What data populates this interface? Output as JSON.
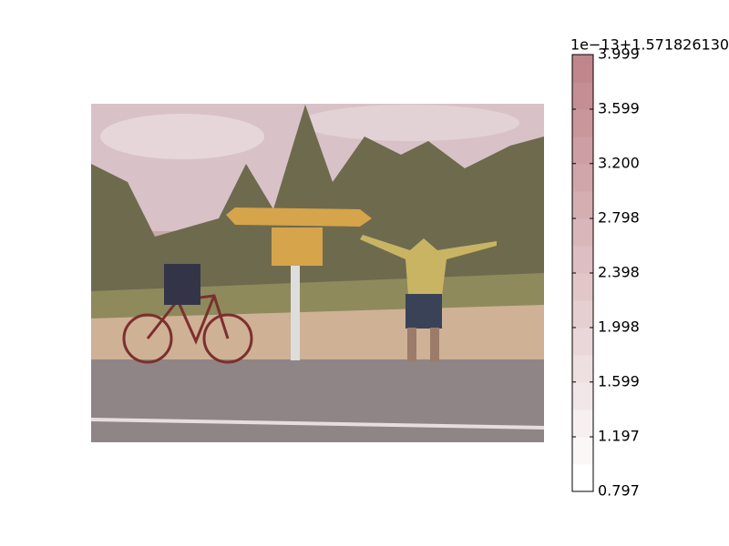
{
  "chart_data": {
    "type": "image-colorbar",
    "colorbar": {
      "offset_label": "1e−13+1.571826130",
      "ylim": [
        0.797,
        3.999
      ],
      "yticks": [
        0.797,
        1.197,
        1.599,
        1.998,
        2.398,
        2.798,
        3.2,
        3.599,
        3.999
      ],
      "yticks_labels": [
        "0.797",
        "1.197",
        "1.599",
        "1.998",
        "2.398",
        "2.798",
        "3.200",
        "3.599",
        "3.999"
      ],
      "levels": 16,
      "cmap": [
        "#ffffff",
        "#c0868c"
      ]
    }
  }
}
